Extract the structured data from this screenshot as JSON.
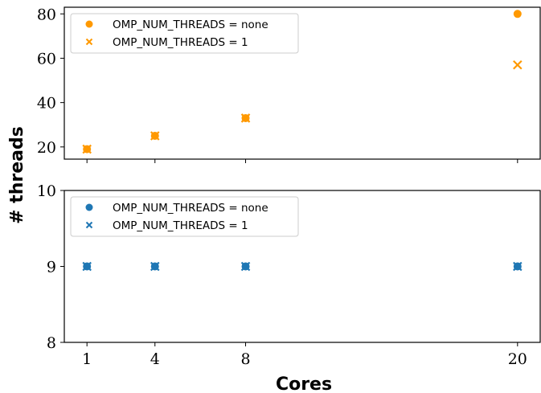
{
  "chart_data": {
    "type": "scatter",
    "x": [
      1,
      4,
      8,
      20
    ],
    "xlabel": "Cores",
    "ylabel": "# threads",
    "xticks": [
      "1",
      "4",
      "8",
      "20"
    ],
    "xlim": [
      0,
      21
    ],
    "legend_placement": "top-left",
    "grid": false,
    "panels": [
      {
        "ylim": [
          14.5,
          83
        ],
        "yticks": [
          "20",
          "40",
          "60",
          "80"
        ],
        "color": "#ff9900",
        "series": [
          {
            "name": "OMP_NUM_THREADS = none",
            "marker": "circle",
            "values": [
              19,
              25,
              33,
              80
            ]
          },
          {
            "name": "OMP_NUM_THREADS = 1",
            "marker": "x",
            "values": [
              19,
              25,
              33,
              57
            ]
          }
        ]
      },
      {
        "ylim": [
          8,
          10
        ],
        "yticks": [
          "8",
          "9",
          "10"
        ],
        "color": "#1f77b4",
        "series": [
          {
            "name": "OMP_NUM_THREADS = none",
            "marker": "circle",
            "values": [
              9,
              9,
              9,
              9
            ]
          },
          {
            "name": "OMP_NUM_THREADS = 1",
            "marker": "x",
            "values": [
              9,
              9,
              9,
              9
            ]
          }
        ]
      }
    ]
  }
}
